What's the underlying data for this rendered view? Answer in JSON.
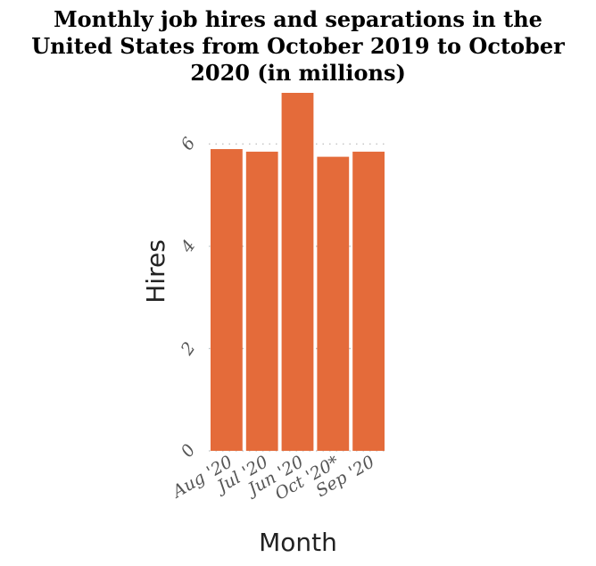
{
  "chart_data": {
    "type": "bar",
    "title": "Monthly job hires and separations in the United States from October 2019 to October 2020 (in millions)",
    "title_lines": [
      "Monthly job hires and separations in the",
      "United States from October 2019 to October",
      "2020 (in millions)"
    ],
    "xlabel": "Month",
    "ylabel": "Hires",
    "categories": [
      "Aug '20",
      "Jul '20",
      "Jun '20",
      "Oct '20*",
      "Sep '20"
    ],
    "values": [
      5.9,
      5.85,
      7.0,
      5.75,
      5.85
    ],
    "yticks": [
      0,
      2,
      4,
      6
    ],
    "ylim": [
      0,
      7.0
    ],
    "grid": true,
    "legend": "none",
    "colors": {
      "bar": "#e46b3a"
    }
  }
}
